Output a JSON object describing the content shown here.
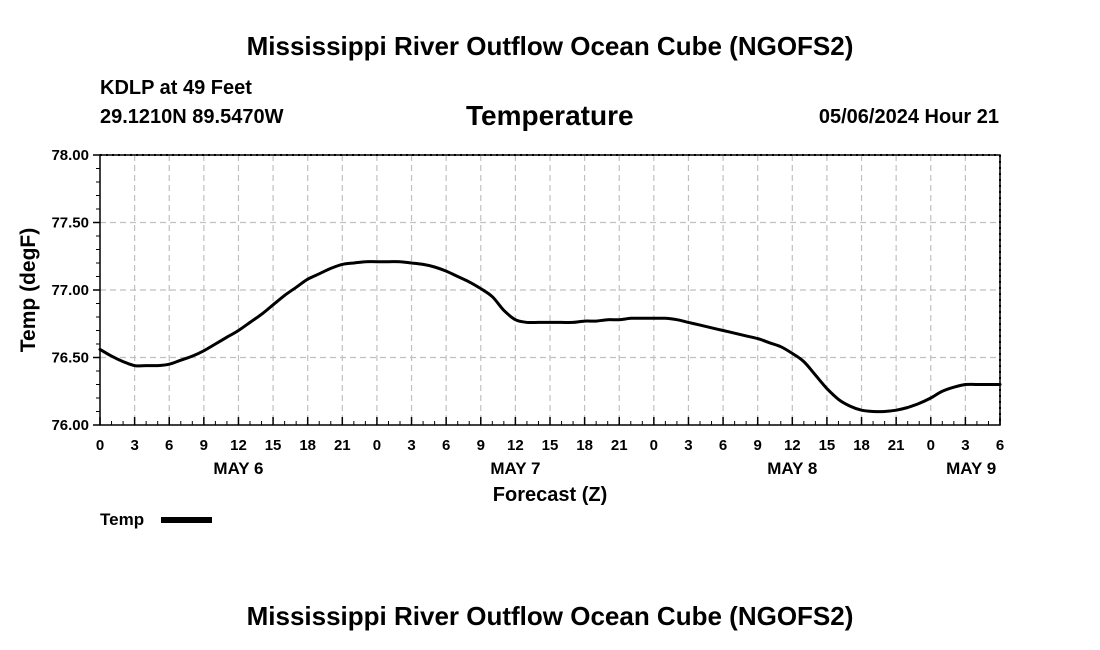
{
  "header": {
    "title": "Mississippi River Outflow Ocean Cube (NGOFS2)",
    "station": "KDLP at 49 Feet",
    "coords": "29.1210N  89.5470W",
    "variable": "Temperature",
    "datetime": "05/06/2024 Hour 21"
  },
  "footer": {
    "title": "Mississippi River Outflow Ocean Cube (NGOFS2)"
  },
  "legend": {
    "label": "Temp"
  },
  "colors": {
    "line": "#000000",
    "grid": "#c0c0c0",
    "background": "#ffffff"
  },
  "chart_data": {
    "type": "line",
    "title": "Temperature",
    "xlabel": "Forecast (Z)",
    "ylabel": "Temp (degF)",
    "ylim": [
      76.0,
      78.0
    ],
    "xlim_hours": [
      0,
      78
    ],
    "yticks": [
      "76.00",
      "76.50",
      "77.00",
      "77.50",
      "78.00"
    ],
    "xtick_hours": [
      0,
      3,
      6,
      9,
      12,
      15,
      18,
      21,
      24,
      27,
      30,
      33,
      36,
      39,
      42,
      45,
      48,
      51,
      54,
      57,
      60,
      63,
      66,
      69,
      72,
      75,
      78
    ],
    "xtick_labels": [
      "0",
      "3",
      "6",
      "9",
      "12",
      "15",
      "18",
      "21",
      "0",
      "3",
      "6",
      "9",
      "12",
      "15",
      "18",
      "21",
      "0",
      "3",
      "6",
      "9",
      "12",
      "15",
      "18",
      "21",
      "0",
      "3",
      "6"
    ],
    "date_labels": [
      {
        "label": "MAY 6",
        "hour": 12
      },
      {
        "label": "MAY 7",
        "hour": 36
      },
      {
        "label": "MAY 8",
        "hour": 60
      },
      {
        "label": "MAY 9",
        "hour": 75.5
      }
    ],
    "grid": true,
    "legend_position": "bottom-left",
    "series": [
      {
        "name": "Temp",
        "hours": [
          0,
          1,
          2,
          3,
          4,
          5,
          6,
          7,
          8,
          9,
          10,
          11,
          12,
          13,
          14,
          15,
          16,
          17,
          18,
          19,
          20,
          21,
          22,
          23,
          24,
          25,
          26,
          27,
          28,
          29,
          30,
          31,
          32,
          33,
          34,
          35,
          36,
          37,
          38,
          39,
          40,
          41,
          42,
          43,
          44,
          45,
          46,
          47,
          48,
          49,
          50,
          51,
          52,
          53,
          54,
          55,
          56,
          57,
          58,
          59,
          60,
          61,
          62,
          63,
          64,
          65,
          66,
          67,
          68,
          69,
          70,
          71,
          72,
          73,
          74,
          75,
          76,
          77,
          78
        ],
        "values": [
          76.56,
          76.51,
          76.47,
          76.44,
          76.44,
          76.44,
          76.45,
          76.48,
          76.51,
          76.55,
          76.6,
          76.65,
          76.7,
          76.76,
          76.82,
          76.89,
          76.96,
          77.02,
          77.08,
          77.12,
          77.16,
          77.19,
          77.2,
          77.21,
          77.21,
          77.21,
          77.21,
          77.2,
          77.19,
          77.17,
          77.14,
          77.1,
          77.06,
          77.01,
          76.95,
          76.85,
          76.78,
          76.76,
          76.76,
          76.76,
          76.76,
          76.76,
          76.77,
          76.77,
          76.78,
          76.78,
          76.79,
          76.79,
          76.79,
          76.79,
          76.78,
          76.76,
          76.74,
          76.72,
          76.7,
          76.68,
          76.66,
          76.64,
          76.61,
          76.58,
          76.53,
          76.47,
          76.37,
          76.27,
          76.19,
          76.14,
          76.11,
          76.1,
          76.1,
          76.11,
          76.13,
          76.16,
          76.2,
          76.25,
          76.28,
          76.3,
          76.3,
          76.3,
          76.3
        ]
      }
    ]
  }
}
